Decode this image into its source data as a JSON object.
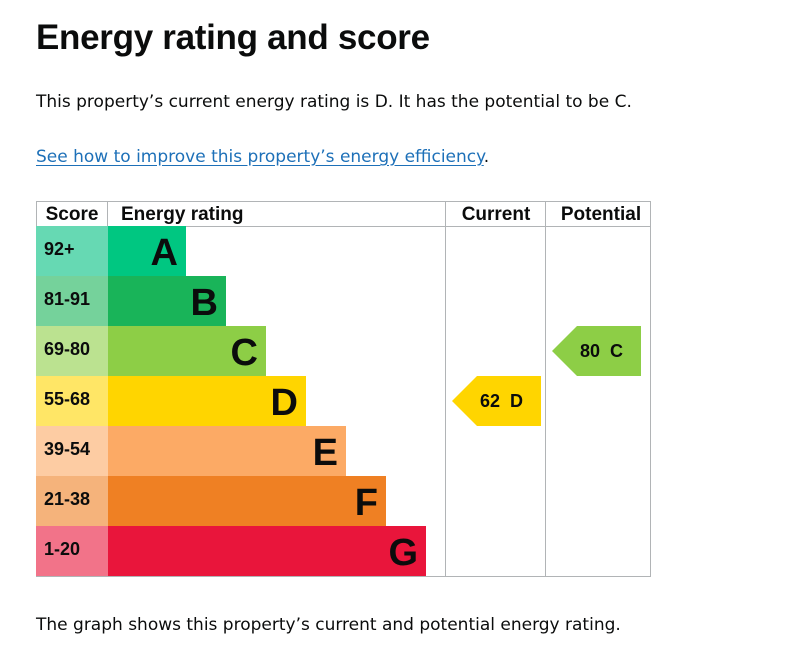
{
  "heading": "Energy rating and score",
  "summary": "This property’s current energy rating is D. It has the potential to be C.",
  "link": {
    "text": "See how to improve this property’s energy efficiency",
    "after": "."
  },
  "caption": "The graph shows this property’s current and potential energy rating.",
  "chart_data": {
    "type": "bar",
    "columns": [
      "Score",
      "Energy rating",
      "Current",
      "Potential"
    ],
    "bands": [
      {
        "score": "92+",
        "rating": "A",
        "color": "#00c781",
        "score_color": "#66d9b3"
      },
      {
        "score": "81-91",
        "rating": "B",
        "color": "#19b459",
        "score_color": "#75d29b"
      },
      {
        "score": "69-80",
        "rating": "C",
        "color": "#8dce46",
        "score_color": "#bbe290"
      },
      {
        "score": "55-68",
        "rating": "D",
        "color": "#ffd500",
        "score_color": "#ffe666"
      },
      {
        "score": "39-54",
        "rating": "E",
        "color": "#fcaa65",
        "score_color": "#fdcca3"
      },
      {
        "score": "21-38",
        "rating": "F",
        "color": "#ef8023",
        "score_color": "#f5b37b"
      },
      {
        "score": "1-20",
        "rating": "G",
        "color": "#e9153b",
        "score_color": "#f27389"
      }
    ],
    "current": {
      "score": 62,
      "rating": "D",
      "label": "62  D",
      "color": "#ffd500"
    },
    "potential": {
      "score": 80,
      "rating": "C",
      "label": "80  C",
      "color": "#8dce46"
    }
  }
}
